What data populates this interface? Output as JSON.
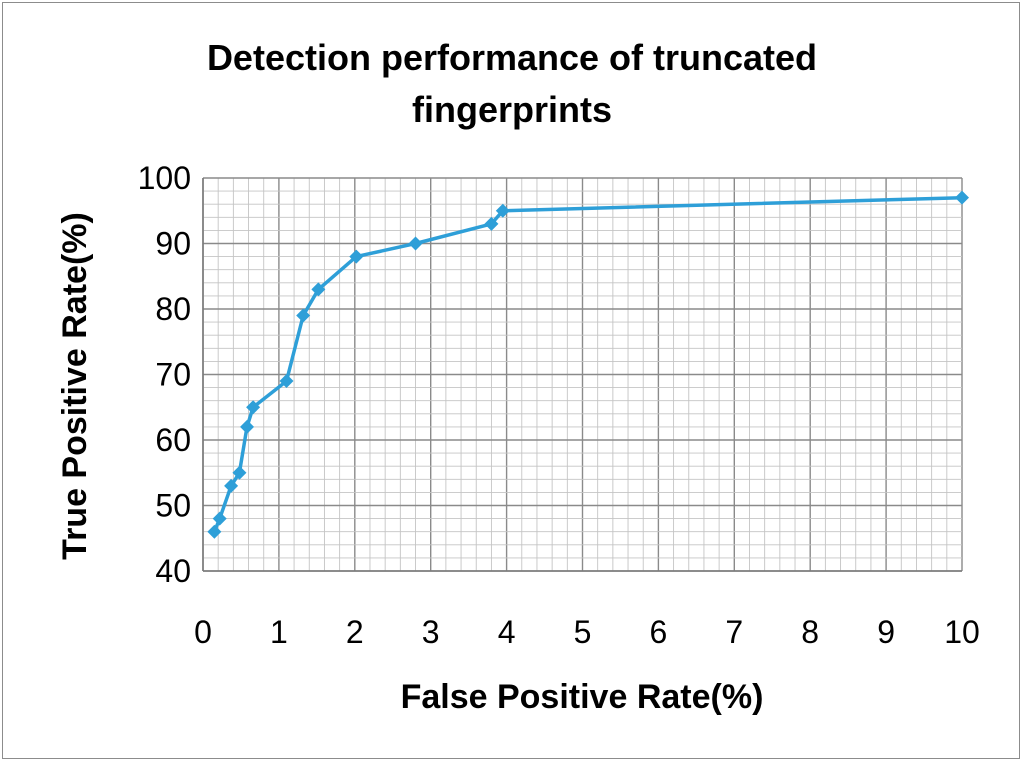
{
  "chart_data": {
    "type": "line",
    "title_lines": [
      "Detection performance of truncated",
      "fingerprints"
    ],
    "xlabel": "False Positive Rate(%)",
    "ylabel": "True  Positive Rate(%)",
    "xlim": [
      0,
      10
    ],
    "ylim": [
      40,
      100
    ],
    "x_ticks": [
      "0",
      "1",
      "2",
      "3",
      "4",
      "5",
      "6",
      "7",
      "8",
      "9",
      "10"
    ],
    "y_ticks": [
      "40",
      "50",
      "60",
      "70",
      "80",
      "90",
      "100"
    ],
    "grid": true,
    "legend": "none",
    "series": [
      {
        "color": "#2e9fd8",
        "marker": "diamond",
        "x": [
          0.15,
          0.22,
          0.37,
          0.48,
          0.58,
          0.66,
          1.1,
          1.32,
          1.52,
          2.02,
          2.8,
          3.8,
          3.95,
          10
        ],
        "y": [
          46,
          48,
          53,
          55,
          62,
          65,
          69,
          79,
          83,
          88,
          90,
          93,
          95,
          97
        ]
      }
    ]
  }
}
